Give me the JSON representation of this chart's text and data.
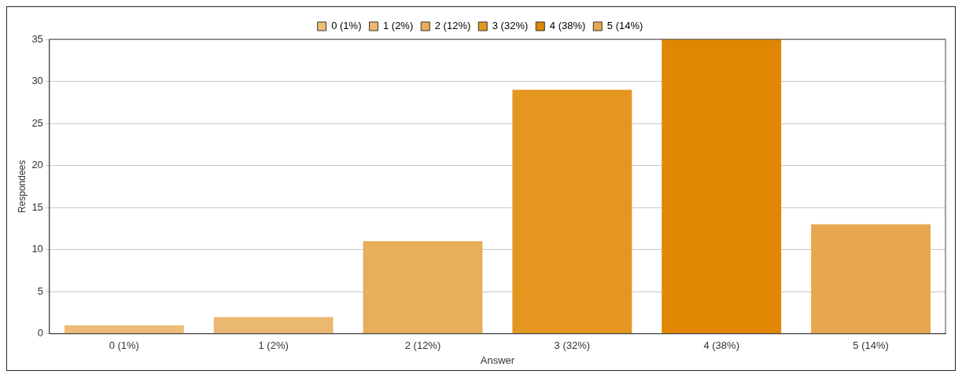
{
  "chart_data": {
    "type": "bar",
    "xlabel": "Answer",
    "ylabel": "Respondees",
    "categories": [
      "0 (1%)",
      "1 (2%)",
      "2 (12%)",
      "3 (32%)",
      "4 (38%)",
      "5 (14%)"
    ],
    "series": [
      {
        "name": "0 (1%)",
        "color": "#ecbc78",
        "values": [
          1,
          null,
          null,
          null,
          null,
          null
        ]
      },
      {
        "name": "1 (2%)",
        "color": "#ebb872",
        "values": [
          null,
          2,
          null,
          null,
          null,
          null
        ]
      },
      {
        "name": "2 (12%)",
        "color": "#e8ae5a",
        "values": [
          null,
          null,
          11,
          null,
          null,
          null
        ]
      },
      {
        "name": "3 (32%)",
        "color": "#e4961f",
        "values": [
          null,
          null,
          null,
          29,
          null,
          null
        ]
      },
      {
        "name": "4 (38%)",
        "color": "#e08600",
        "values": [
          null,
          null,
          null,
          null,
          35,
          null
        ]
      },
      {
        "name": "5 (14%)",
        "color": "#e6a74e",
        "values": [
          null,
          null,
          null,
          null,
          null,
          13
        ]
      }
    ],
    "ylim": [
      0,
      35
    ],
    "yticks": [
      0,
      5,
      10,
      15,
      20,
      25,
      30,
      35
    ],
    "grid": "y",
    "legend": "top"
  }
}
